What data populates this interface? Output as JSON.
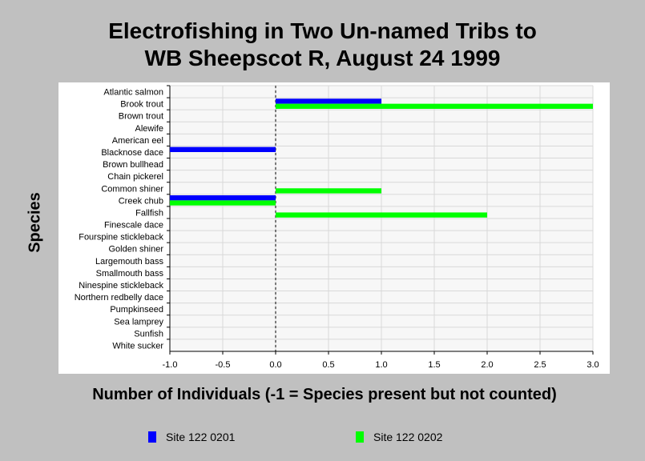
{
  "chart_data": {
    "type": "bar",
    "orientation": "horizontal",
    "title": "Electrofishing in Two Un-named Tribs to WB Sheepscot R, August 24 1999",
    "title_lines": [
      "Electrofishing in Two Un-named Tribs to",
      "WB Sheepscot R, August 24 1999"
    ],
    "xlabel": "Number of Individuals (-1 = Species present but not counted)",
    "ylabel": "Species",
    "xlim": [
      -1.0,
      3.0
    ],
    "xticks": [
      "-1.0",
      "-0.5",
      "0.0",
      "0.5",
      "1.0",
      "1.5",
      "2.0",
      "2.5",
      "3.0"
    ],
    "grid": true,
    "legend_position": "bottom",
    "categories": [
      "Atlantic salmon",
      "Brook trout",
      "Brown trout",
      "Alewife",
      "American eel",
      "Blacknose dace",
      "Brown bullhead",
      "Chain pickerel",
      "Common shiner",
      "Creek chub",
      "Fallfish",
      "Finescale dace",
      "Fourspine stickleback",
      "Golden shiner",
      "Largemouth bass",
      "Smallmouth bass",
      "Ninespine stickleback",
      "Northern redbelly dace",
      "Pumpkinseed",
      "Sea lamprey",
      "Sunfish",
      "White sucker"
    ],
    "series": [
      {
        "name": "Site 122 0201",
        "color": "#0000ff",
        "values": [
          0,
          1,
          0,
          0,
          0,
          -1,
          0,
          0,
          0,
          -1,
          0,
          0,
          0,
          0,
          0,
          0,
          0,
          0,
          0,
          0,
          0,
          0
        ]
      },
      {
        "name": "Site 122 0202",
        "color": "#00ff00",
        "values": [
          0,
          3,
          0,
          0,
          0,
          0,
          0,
          0,
          1,
          -1,
          2,
          0,
          0,
          0,
          0,
          0,
          0,
          0,
          0,
          0,
          0,
          0
        ]
      }
    ]
  }
}
